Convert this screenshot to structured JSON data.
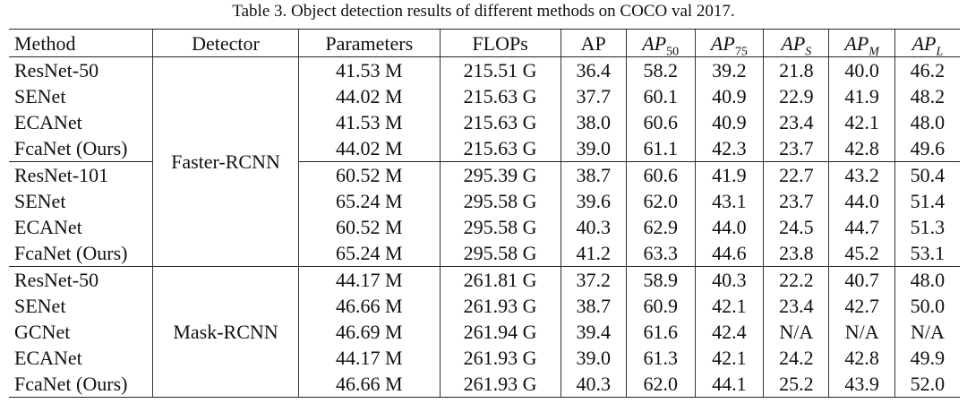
{
  "caption": "Table 3. Object detection results of different methods on COCO val 2017.",
  "columns": {
    "method": "Method",
    "detector": "Detector",
    "params": "Parameters",
    "flops": "FLOPs",
    "ap": "AP",
    "ap50": {
      "base": "AP",
      "sub": "50"
    },
    "ap75": {
      "base": "AP",
      "sub": "75"
    },
    "aps": {
      "base": "AP",
      "sub": "S"
    },
    "apm": {
      "base": "AP",
      "sub": "M"
    },
    "apl": {
      "base": "AP",
      "sub": "L"
    }
  },
  "groups": [
    {
      "detector": "Faster-RCNN"
    },
    {
      "detector": "Mask-RCNN"
    }
  ],
  "rows": [
    [
      "ResNet-50",
      "41.53 M",
      "215.51 G",
      "36.4",
      "58.2",
      "39.2",
      "21.8",
      "40.0",
      "46.2"
    ],
    [
      "SENet",
      "44.02 M",
      "215.63 G",
      "37.7",
      "60.1",
      "40.9",
      "22.9",
      "41.9",
      "48.2"
    ],
    [
      "ECANet",
      "41.53 M",
      "215.63 G",
      "38.0",
      "60.6",
      "40.9",
      "23.4",
      "42.1",
      "48.0"
    ],
    [
      "FcaNet (Ours)",
      "44.02 M",
      "215.63 G",
      "39.0",
      "61.1",
      "42.3",
      "23.7",
      "42.8",
      "49.6"
    ],
    [
      "ResNet-101",
      "60.52 M",
      "295.39 G",
      "38.7",
      "60.6",
      "41.9",
      "22.7",
      "43.2",
      "50.4"
    ],
    [
      "SENet",
      "65.24 M",
      "295.58 G",
      "39.6",
      "62.0",
      "43.1",
      "23.7",
      "44.0",
      "51.4"
    ],
    [
      "ECANet",
      "60.52 M",
      "295.58 G",
      "40.3",
      "62.9",
      "44.0",
      "24.5",
      "44.7",
      "51.3"
    ],
    [
      "FcaNet (Ours)",
      "65.24 M",
      "295.58 G",
      "41.2",
      "63.3",
      "44.6",
      "23.8",
      "45.2",
      "53.1"
    ],
    [
      "ResNet-50",
      "44.17 M",
      "261.81 G",
      "37.2",
      "58.9",
      "40.3",
      "22.2",
      "40.7",
      "48.0"
    ],
    [
      "SENet",
      "46.66 M",
      "261.93 G",
      "38.7",
      "60.9",
      "42.1",
      "23.4",
      "42.7",
      "50.0"
    ],
    [
      "GCNet",
      "46.69 M",
      "261.94 G",
      "39.4",
      "61.6",
      "42.4",
      "N/A",
      "N/A",
      "N/A"
    ],
    [
      "ECANet",
      "44.17 M",
      "261.93 G",
      "39.0",
      "61.3",
      "42.1",
      "24.2",
      "42.8",
      "49.9"
    ],
    [
      "FcaNet (Ours)",
      "46.66 M",
      "261.93 G",
      "40.3",
      "62.0",
      "44.1",
      "25.2",
      "43.9",
      "52.0"
    ]
  ],
  "bold_cells": [
    [
      3,
      3
    ],
    [
      3,
      4
    ],
    [
      3,
      5
    ],
    [
      3,
      6
    ],
    [
      3,
      7
    ],
    [
      3,
      8
    ],
    [
      6,
      6
    ],
    [
      7,
      3
    ],
    [
      7,
      4
    ],
    [
      7,
      5
    ],
    [
      7,
      7
    ],
    [
      7,
      8
    ],
    [
      12,
      3
    ],
    [
      12,
      4
    ],
    [
      12,
      5
    ],
    [
      12,
      6
    ],
    [
      12,
      7
    ],
    [
      12,
      8
    ]
  ]
}
